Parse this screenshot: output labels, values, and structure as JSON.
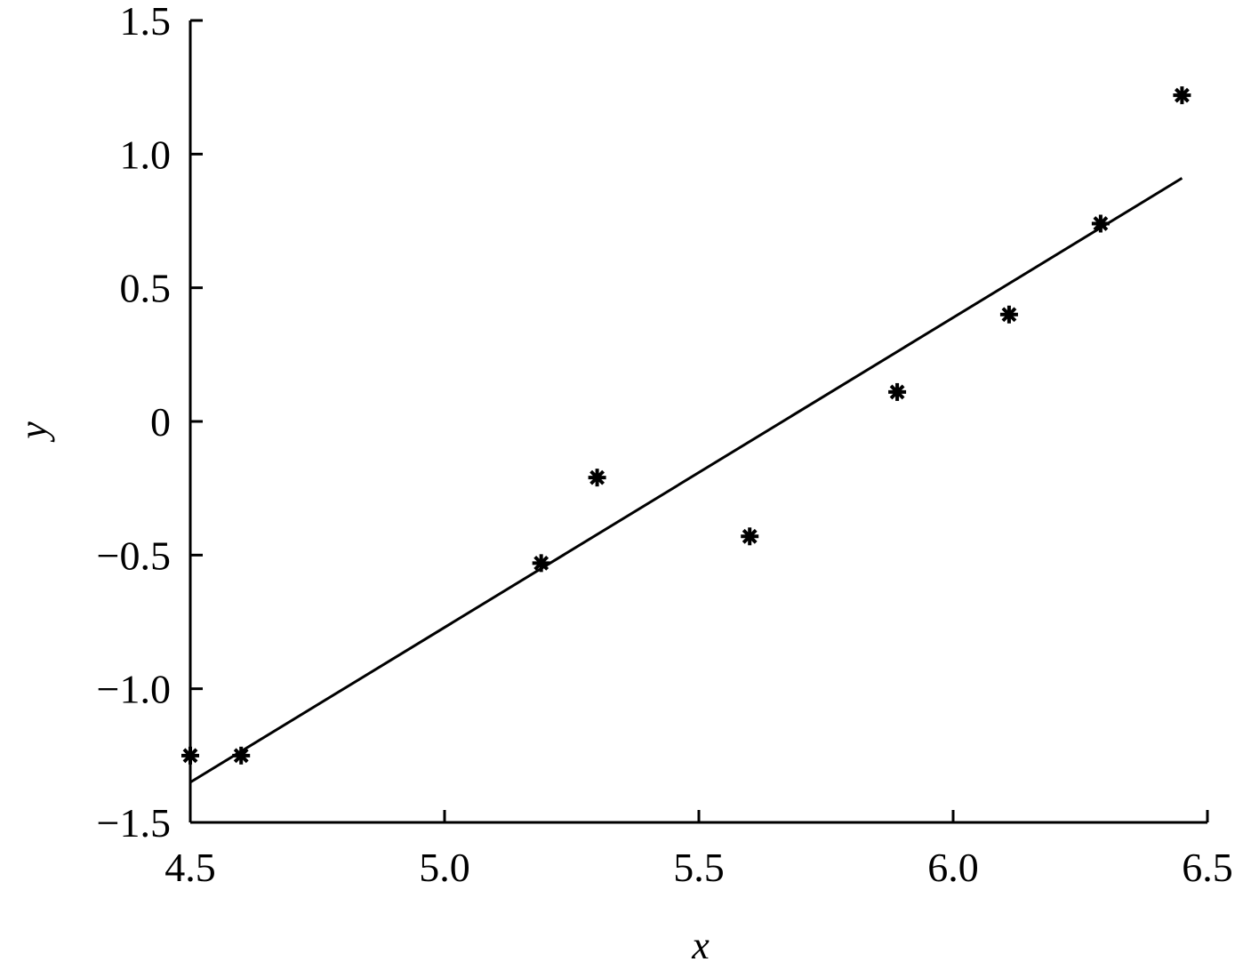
{
  "chart_data": {
    "type": "scatter",
    "title": "",
    "xlabel": "x",
    "ylabel": "y",
    "xlim": [
      4.5,
      6.5
    ],
    "ylim": [
      -1.5,
      1.5
    ],
    "grid": false,
    "x_ticks": [
      4.5,
      5.0,
      5.5,
      6.0,
      6.5
    ],
    "x_tick_labels": [
      "4.5",
      "5.0",
      "5.5",
      "6.0",
      "6.5"
    ],
    "y_ticks": [
      -1.5,
      -1.0,
      -0.5,
      0,
      0.5,
      1.0,
      1.5
    ],
    "y_tick_labels": [
      "−1.5",
      "−1.0",
      "−0.5",
      "0",
      "0.5",
      "1.0",
      "1.5"
    ],
    "series": [
      {
        "marker": "asterisk",
        "color": "#000000",
        "x": [
          4.5,
          4.6,
          5.19,
          5.3,
          5.6,
          5.89,
          6.11,
          6.29,
          6.45
        ],
        "y": [
          -1.25,
          -1.25,
          -0.53,
          -0.21,
          -0.43,
          0.11,
          0.4,
          0.74,
          1.22
        ]
      }
    ],
    "fit_line": {
      "color": "#000000",
      "x": [
        4.5,
        6.45
      ],
      "y": [
        -1.35,
        0.91
      ]
    }
  }
}
